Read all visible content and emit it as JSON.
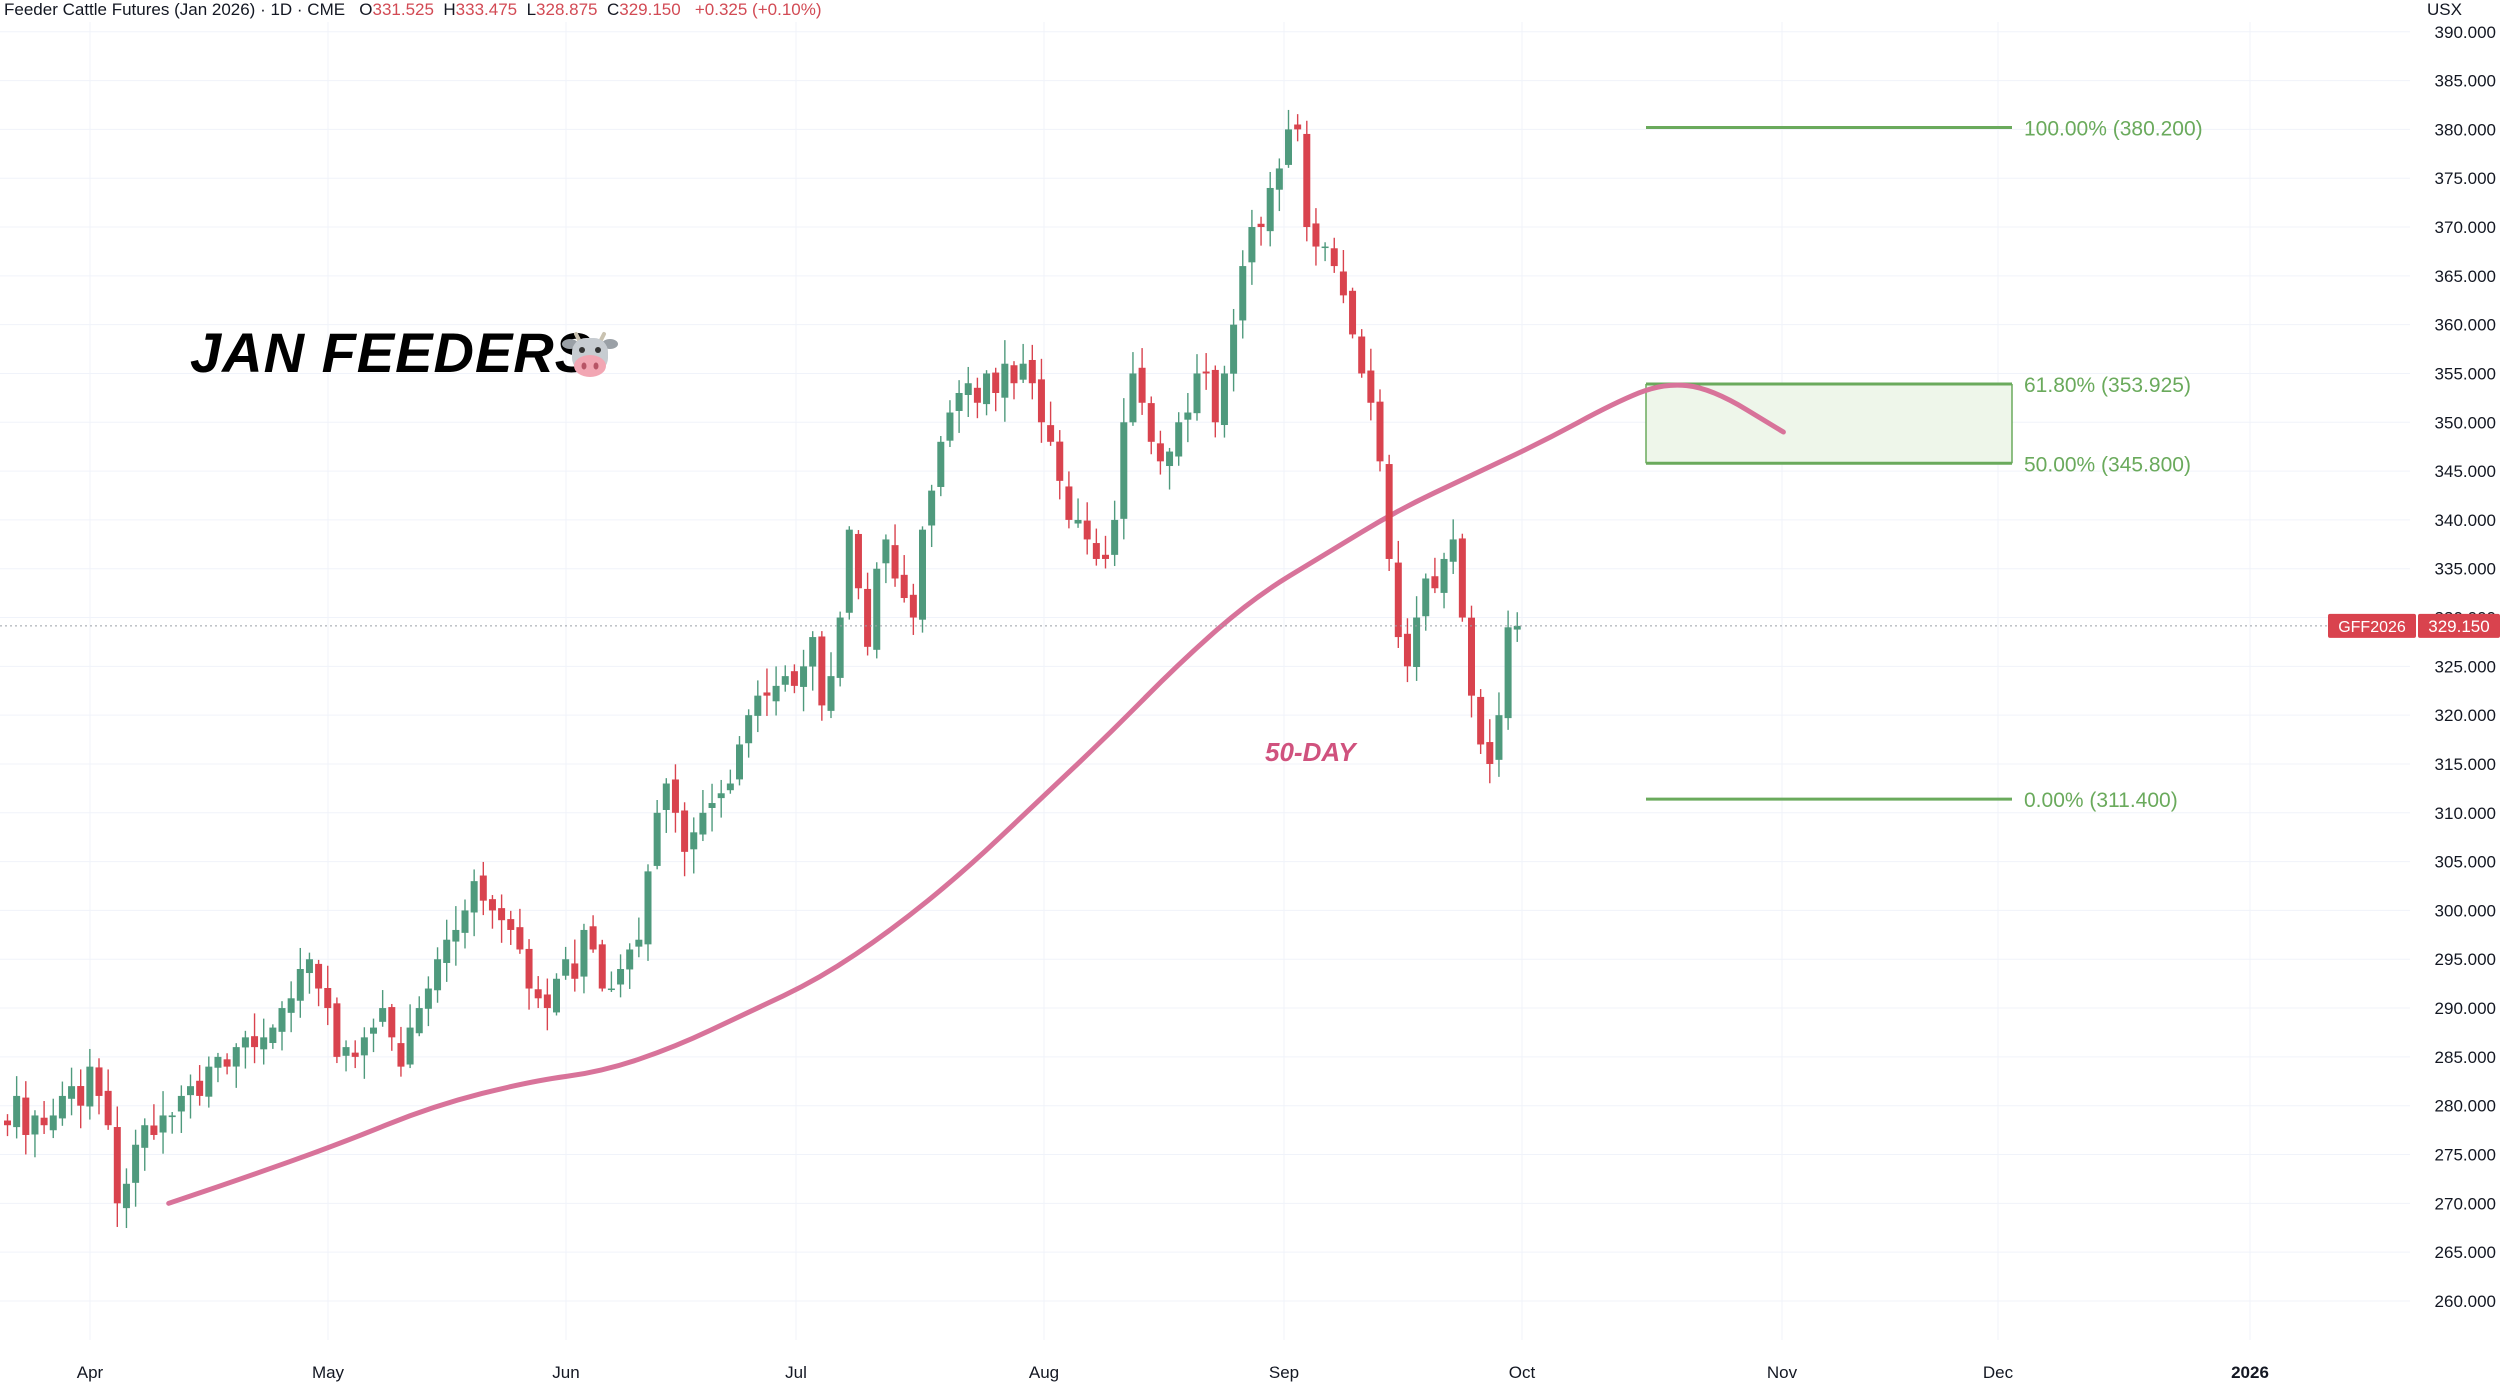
{
  "header": {
    "symbol": "Feeder Cattle Futures (Jan 2026) · 1D · CME",
    "o_label": "O",
    "o_value": "331.525",
    "h_label": "H",
    "h_value": "333.475",
    "l_label": "L",
    "l_value": "328.875",
    "c_label": "C",
    "c_value": "329.150",
    "change": "+0.325 (+0.10%)"
  },
  "currency": "USX",
  "annotation_title": "JAN FEEDERS",
  "annotation_icon": "cow-face-icon",
  "ma_label": "50-DAY",
  "price_tag": {
    "symbol": "GFF2026",
    "value": "329.150"
  },
  "colors": {
    "up": "#4f9a7d",
    "down": "#d9434e",
    "ma": "#d8739a",
    "fib": "#6aaa5c",
    "fib_fill": "#eef6ea"
  },
  "chart_data": {
    "type": "candlestick",
    "y_range": [
      256,
      391
    ],
    "y_ticks": [
      "390.000",
      "385.000",
      "380.000",
      "375.000",
      "370.000",
      "365.000",
      "360.000",
      "355.000",
      "350.000",
      "345.000",
      "340.000",
      "335.000",
      "330.000",
      "325.000",
      "320.000",
      "315.000",
      "310.000",
      "305.000",
      "300.000",
      "295.000",
      "290.000",
      "285.000",
      "280.000",
      "275.000",
      "270.000",
      "265.000",
      "260.000"
    ],
    "x_labels": [
      "Apr",
      "May",
      "Jun",
      "Jul",
      "Aug",
      "Sep",
      "Oct",
      "Nov",
      "Dec",
      "2026"
    ],
    "last_price": 329.15,
    "fib_levels": [
      {
        "label": "100.00% (380.200)",
        "value": 380.2
      },
      {
        "label": "61.80% (353.925)",
        "value": 353.925
      },
      {
        "label": "50.00% (345.800)",
        "value": 345.8
      },
      {
        "label": "0.00% (311.400)",
        "value": 311.4
      }
    ],
    "series_close": [
      278,
      281,
      277,
      279,
      278,
      279,
      281,
      282,
      280,
      284,
      281,
      278,
      270,
      272,
      276,
      278,
      277,
      279,
      279,
      281,
      282,
      281,
      284,
      285,
      284,
      286,
      287,
      286,
      287,
      288,
      290,
      291,
      294,
      295,
      292,
      290,
      285,
      286,
      285,
      287,
      288,
      290,
      287,
      284,
      288,
      290,
      292,
      295,
      297,
      298,
      300,
      303,
      301,
      300,
      299,
      298,
      296,
      292,
      291,
      290,
      293,
      295,
      293,
      298,
      296,
      292,
      292,
      294,
      296,
      297,
      304,
      310,
      313,
      310,
      306,
      308,
      310,
      311,
      312,
      313,
      317,
      320,
      322,
      322,
      323,
      324,
      323,
      325,
      328,
      321,
      324,
      330,
      339,
      333,
      327,
      335,
      338,
      334,
      332,
      330,
      339,
      343,
      348,
      351,
      353,
      354,
      352,
      355,
      353,
      356,
      354,
      356,
      354,
      350,
      348,
      344,
      340,
      340,
      338,
      336,
      336,
      340,
      350,
      355,
      352,
      348,
      346,
      347,
      350,
      351,
      355,
      355,
      350,
      355,
      360,
      366,
      370,
      370,
      374,
      376,
      380,
      380,
      370,
      368,
      368,
      366,
      363,
      359,
      355,
      352,
      346,
      336,
      328,
      325,
      330,
      334,
      333,
      336,
      338,
      330,
      322,
      317,
      315,
      320,
      329,
      329.15
    ],
    "ma50": [
      [
        0.07,
        270
      ],
      [
        0.1,
        272.5
      ],
      [
        0.14,
        276
      ],
      [
        0.18,
        280
      ],
      [
        0.22,
        282.5
      ],
      [
        0.25,
        283.5
      ],
      [
        0.28,
        286
      ],
      [
        0.31,
        289.5
      ],
      [
        0.34,
        293
      ],
      [
        0.37,
        298
      ],
      [
        0.4,
        304
      ],
      [
        0.43,
        311
      ],
      [
        0.46,
        318
      ],
      [
        0.49,
        325.5
      ],
      [
        0.52,
        332
      ],
      [
        0.55,
        336.5
      ],
      [
        0.58,
        341
      ],
      [
        0.61,
        344.5
      ],
      [
        0.64,
        348
      ],
      [
        0.67,
        352
      ],
      [
        0.69,
        354
      ],
      [
        0.71,
        353.5
      ],
      [
        0.74,
        349
      ]
    ]
  }
}
